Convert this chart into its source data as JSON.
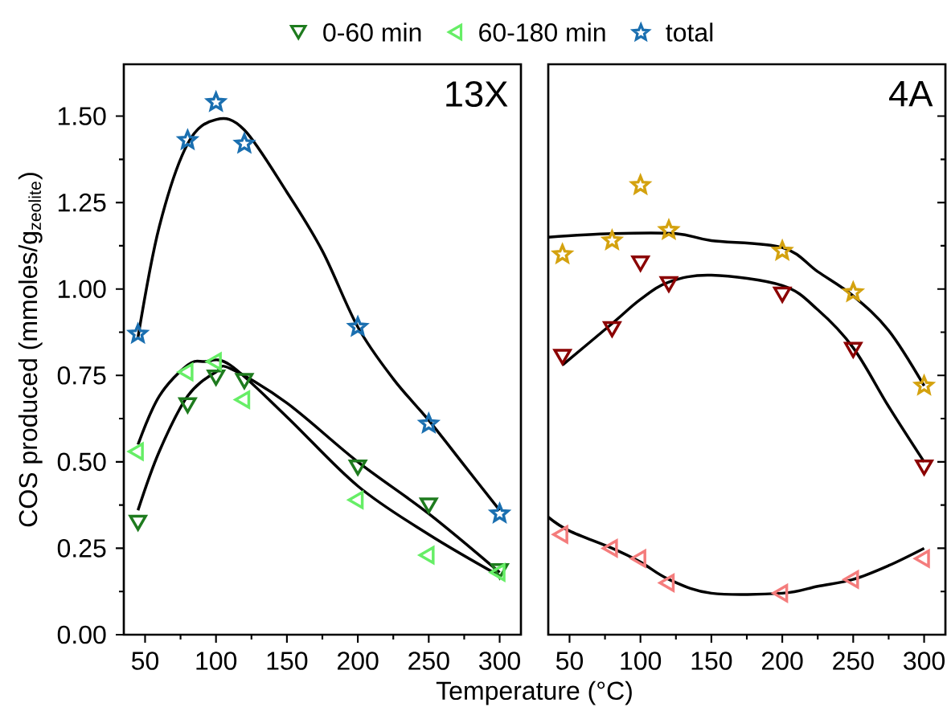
{
  "chart_data": [
    {
      "type": "scatter",
      "title": "13X",
      "ylabel": "COS produced (mmoles/g$_{zeolite}$)",
      "xlabel": "Temperature (°C)",
      "legend": "top",
      "xlim": [
        35,
        315
      ],
      "xticks": [
        50,
        100,
        150,
        200,
        250,
        300
      ],
      "ylim": [
        0,
        1.65
      ],
      "yticks": [
        {
          "value": 0,
          "label": "0.00"
        },
        {
          "value": 0.25,
          "label": "0.25"
        },
        {
          "value": 0.5,
          "label": "0.50"
        },
        {
          "value": 0.75,
          "label": "0.75"
        },
        {
          "value": 1,
          "label": "1.00"
        },
        {
          "value": 1.25,
          "label": "1.25"
        },
        {
          "value": 1.5,
          "label": "1.50"
        }
      ],
      "series": [
        {
          "name": "0-60 min",
          "type": "scatter",
          "marker": "triangle",
          "color": "#1e7b1e",
          "x": [
            45,
            80,
            100,
            120,
            200,
            250,
            300
          ],
          "values": [
            0.33,
            0.67,
            0.75,
            0.74,
            0.49,
            0.38,
            0.19
          ]
        },
        {
          "name": "60-180 min",
          "type": "scatter",
          "marker": "triangle",
          "color": "#66ee66",
          "x": [
            45,
            80,
            100,
            120,
            200,
            250,
            300
          ],
          "values": [
            0.53,
            0.76,
            0.79,
            0.68,
            0.39,
            0.23,
            0.18
          ]
        },
        {
          "name": "total",
          "type": "scatter",
          "marker": "star",
          "color": "#1a6fb0",
          "x": [
            45,
            80,
            100,
            120,
            200,
            250,
            300
          ],
          "values": [
            0.87,
            1.43,
            1.54,
            1.42,
            0.89,
            0.61,
            0.35
          ]
        },
        {
          "type": "line",
          "marker": "none",
          "color": "#000000",
          "x": [
            45,
            60,
            80,
            100,
            110,
            150,
            200,
            250,
            300
          ],
          "values": [
            0.36,
            0.53,
            0.69,
            0.76,
            0.77,
            0.67,
            0.5,
            0.35,
            0.18
          ]
        },
        {
          "type": "line",
          "marker": "none",
          "color": "#000000",
          "x": [
            45,
            60,
            80,
            92,
            110,
            150,
            200,
            250,
            300
          ],
          "values": [
            0.55,
            0.69,
            0.78,
            0.79,
            0.78,
            0.63,
            0.43,
            0.29,
            0.17
          ]
        },
        {
          "type": "line",
          "marker": "none",
          "color": "#000000",
          "x": [
            45,
            60,
            80,
            100,
            120,
            150,
            175,
            200,
            225,
            250,
            275,
            300
          ],
          "values": [
            0.86,
            1.18,
            1.42,
            1.49,
            1.46,
            1.28,
            1.11,
            0.89,
            0.74,
            0.62,
            0.49,
            0.36
          ]
        }
      ]
    },
    {
      "type": "scatter",
      "title": "4A",
      "tick_labels": "x",
      "xlim": [
        35,
        315
      ],
      "xticks": [
        50,
        100,
        150,
        200,
        250,
        300
      ],
      "ylim": [
        0,
        1.65
      ],
      "yticks": [
        {
          "value": 0,
          "label": null
        },
        {
          "value": 0.25,
          "label": null
        },
        {
          "value": 0.5,
          "label": null
        },
        {
          "value": 0.75,
          "label": null
        },
        {
          "value": 1,
          "label": null
        },
        {
          "value": 1.25,
          "label": null
        },
        {
          "value": 1.5,
          "label": null
        }
      ],
      "series": [
        {
          "type": "scatter",
          "marker": "triangle",
          "color": "#8b0000",
          "x": [
            45,
            80,
            100,
            120,
            200,
            250,
            300
          ],
          "values": [
            0.81,
            0.89,
            1.08,
            1.02,
            0.99,
            0.83,
            0.49
          ]
        },
        {
          "type": "scatter",
          "marker": "triangle",
          "color": "#f47c7c",
          "x": [
            45,
            80,
            100,
            120,
            200,
            250,
            300
          ],
          "values": [
            0.29,
            0.25,
            0.22,
            0.15,
            0.12,
            0.16,
            0.22
          ]
        },
        {
          "type": "scatter",
          "marker": "star",
          "color": "#d4a20f",
          "x": [
            45,
            80,
            100,
            120,
            200,
            250,
            300
          ],
          "values": [
            1.1,
            1.14,
            1.3,
            1.17,
            1.11,
            0.99,
            0.72
          ]
        },
        {
          "type": "line",
          "marker": "none",
          "color": "#000000",
          "x": [
            45,
            80,
            100,
            120,
            150,
            200,
            225,
            250,
            275,
            300
          ],
          "values": [
            0.78,
            0.9,
            0.97,
            1.02,
            1.04,
            1.01,
            0.94,
            0.83,
            0.66,
            0.5
          ]
        },
        {
          "type": "line",
          "marker": "none",
          "color": "#000000",
          "x": [
            35,
            50,
            80,
            100,
            120,
            150,
            200,
            225,
            250,
            275,
            300
          ],
          "values": [
            0.34,
            0.3,
            0.25,
            0.21,
            0.16,
            0.12,
            0.12,
            0.14,
            0.16,
            0.2,
            0.25
          ]
        },
        {
          "type": "line",
          "marker": "none",
          "color": "#000000",
          "x": [
            35,
            80,
            125,
            150,
            200,
            225,
            250,
            275,
            300
          ],
          "values": [
            1.15,
            1.16,
            1.16,
            1.14,
            1.12,
            1.05,
            0.98,
            0.88,
            0.72
          ]
        }
      ]
    }
  ]
}
